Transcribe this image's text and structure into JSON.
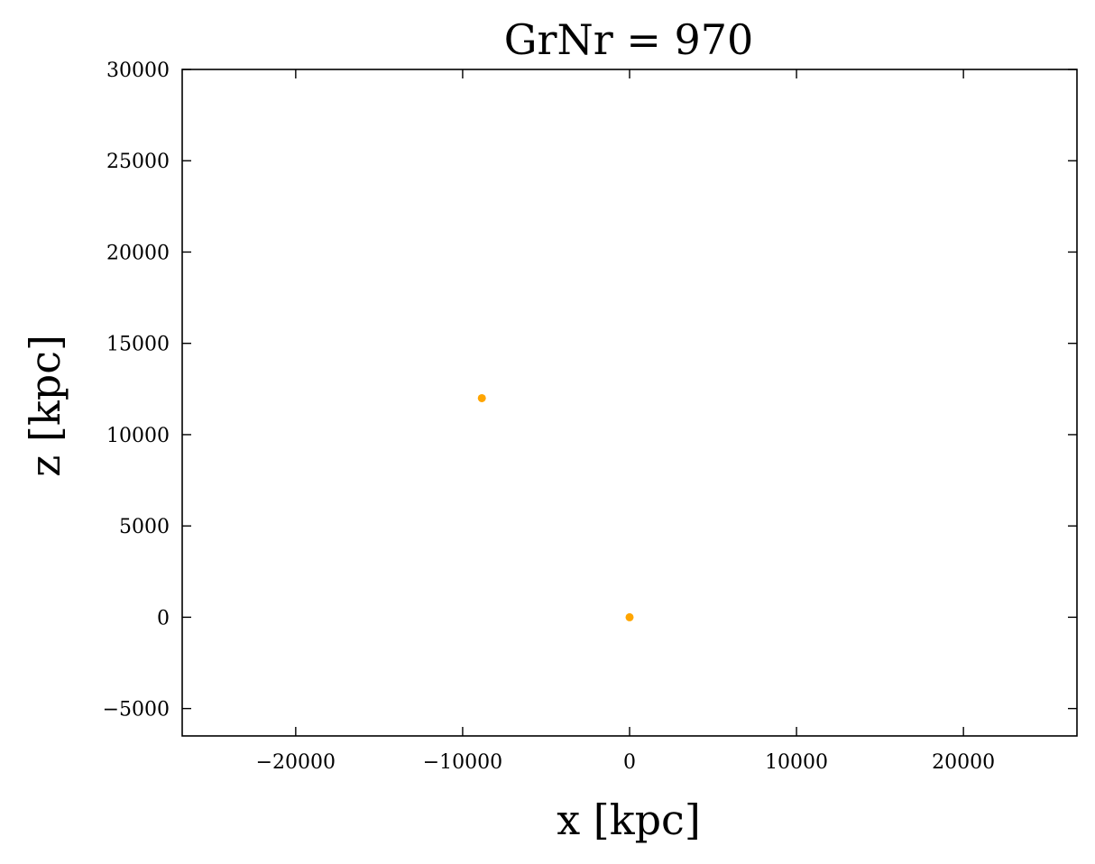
{
  "chart_data": {
    "type": "scatter",
    "title": "GrNr = 970",
    "xlabel": "x [kpc]",
    "ylabel": "z [kpc]",
    "xlim": [
      -26800,
      26800
    ],
    "ylim": [
      -6500,
      30000
    ],
    "xticks": [
      -20000,
      -10000,
      0,
      10000,
      20000
    ],
    "xtick_labels": [
      "−20000",
      "−10000",
      "0",
      "10000",
      "20000"
    ],
    "yticks": [
      -5000,
      0,
      5000,
      10000,
      15000,
      20000,
      25000,
      30000
    ],
    "ytick_labels": [
      "−5000",
      "0",
      "5000",
      "10000",
      "15000",
      "20000",
      "25000",
      "30000"
    ],
    "grid": false,
    "point_color": "#ffa500",
    "points": [
      {
        "x": -8850,
        "y": 12000
      },
      {
        "x": 0,
        "y": 0
      }
    ]
  }
}
